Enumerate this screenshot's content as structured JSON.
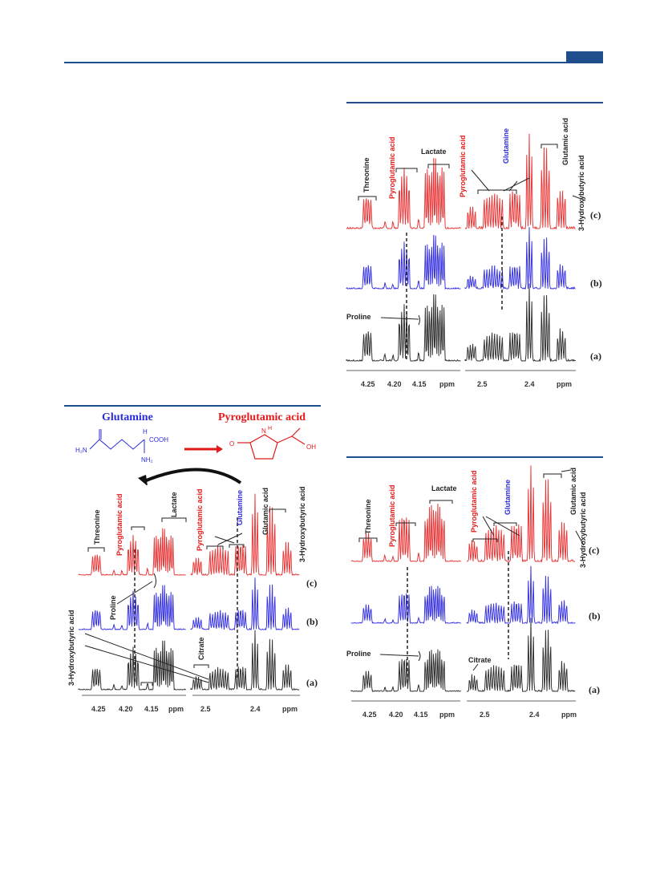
{
  "colors": {
    "accent": "#1f4e8c",
    "trace_c": "#e8393a",
    "trace_b": "#3b36e0",
    "trace_a": "#333333",
    "glutamine": "#2b2bd6",
    "pyroglutamic": "#e21a1a"
  },
  "panel_top_right": {
    "labels": {
      "threonine": "Threonine",
      "pyroglutamic_1": "Pyroglutamic acid",
      "lactate": "Lactate",
      "pyroglutamic_2": "Pyroglutamic acid",
      "glutamine": "Glutamine",
      "glutamic": "Glutamic acid",
      "hydroxy": "3-Hydroxybutyric acid",
      "proline": "Proline"
    },
    "trace_labels": [
      "(c)",
      "(b)",
      "(a)"
    ],
    "axis_left_ticks": [
      "4.25",
      "4.20",
      "4.15",
      "ppm"
    ],
    "axis_right_ticks": [
      "2.5",
      "2.4",
      "ppm"
    ]
  },
  "panel_left": {
    "structures": {
      "glutamine": "Glutamine",
      "pyroglutamic": "Pyroglutamic acid",
      "h2n": "H₂N",
      "h": "H",
      "cooh": "COOH",
      "nh2": "NH₂",
      "o": "O",
      "oh": "OH",
      "n": "N",
      "hh": "H"
    },
    "labels": {
      "threonine": "Threonine",
      "pyroglutamic_1": "Pyroglutamic acid",
      "lactate": "Lactate",
      "pyroglutamic_2": "Pyroglutamic acid",
      "glutamine": "Glutamine",
      "glutamic": "Glutamic acid",
      "hydroxy_right": "3-Hydroxybutyric acid",
      "proline": "Proline",
      "citrate": "Citrate",
      "hydroxy_left": "3-Hydroxybutyric acid"
    },
    "trace_labels": [
      "(c)",
      "(b)",
      "(a)"
    ],
    "axis_left_ticks": [
      "4.25",
      "4.20",
      "4.15",
      "ppm"
    ],
    "axis_right_ticks": [
      "2.5",
      "2.4",
      "ppm"
    ]
  },
  "panel_bottom_right": {
    "labels": {
      "threonine": "Threonine",
      "pyroglutamic_1": "Pyroglutamic acid",
      "lactate": "Lactate",
      "pyroglutamic_2": "Pyroglutamic acid",
      "glutamine": "Glutamine",
      "glutamic": "Glutamic acid",
      "hydroxy": "3-Hydroxybutyric acid",
      "proline": "Proline",
      "citrate": "Citrate"
    },
    "trace_labels": [
      "(c)",
      "(b)",
      "(a)"
    ],
    "axis_left_ticks": [
      "4.25",
      "4.20",
      "4.15",
      "ppm"
    ],
    "axis_right_ticks": [
      "2.5",
      "2.4",
      "ppm"
    ]
  }
}
